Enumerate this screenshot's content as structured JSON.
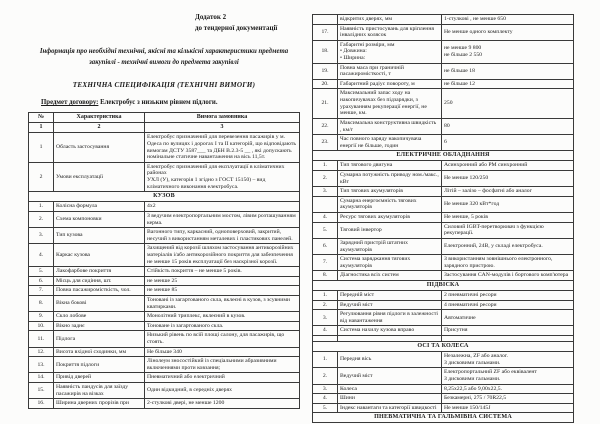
{
  "header": {
    "annex_line1": "Додаток 2",
    "annex_line2": "до тендерної документації",
    "info_paragraph": "Інформація про необхідні технічні, якісні та кількісні характеристики предмета закупівлі - технічні вимоги до предмета закупівлі",
    "spec_title": "ТЕХНІЧНА СПЕЦИФІКАЦІЯ (ТЕХНІЧНІ ВИМОГИ)",
    "subject_label": "Предмет договору:",
    "subject_value": " Електробус з низьким рівнем підлоги."
  },
  "table": {
    "columns": [
      "№",
      "Характеристика",
      "Вимога замовника"
    ],
    "column_numbers": [
      "1",
      "2",
      "3"
    ],
    "left_rows": [
      {
        "num": "1",
        "char": "Область застосування",
        "req": "Електробус призначений для перевезення пасажирів у м. Одеса по вулицях і дорогах I та II категорій, що відповідають вимогам ДСТУ 3587___ та ДБН В.2.3-5 __ , які допускають номінальне статичне навантаження на вісь 11,5т."
      },
      {
        "num": "2",
        "char": "Умови експлуатації",
        "req": "Електробус призначений для експлуатації в кліматичних районах\nУХЛ (У), категорія 1 згідно з ГОСТ 15150) – вид кліматичного виконання електробуса."
      },
      {
        "section": "КУЗОВ"
      },
      {
        "num": "1.",
        "char": "Колісна формула",
        "req": "4х2"
      },
      {
        "num": "2.",
        "char": "Схема компоновки",
        "req": "З  ведучим електропортальним мостом, лівим розташуванням керма."
      },
      {
        "num": "3.",
        "char": "Тип кузова",
        "req": "Вагонного типу, каркасний, одноповерховий, закритий, несучий з використанням металевих і пластикових панелей."
      },
      {
        "num": "4.",
        "char": "Каркас кузова",
        "req": "Захищений від корозії шляхом застосування антикорозійних матеріалів і/або антикорозійного покриття для забезпечення не менше 15 років експлуатації без наскрізної корозії."
      },
      {
        "num": "5.",
        "char": "Лакофарбове покриття",
        "req": "Стійкість покриття – не менше 5 років."
      },
      {
        "num": "6.",
        "char": "Місць для сидіння, шт.",
        "req": "не менше 25"
      },
      {
        "num": "7.",
        "char": "Повна пасажиромісткість, чол.",
        "req": "не менше 85"
      },
      {
        "num": "8.",
        "char": "Вікна бокові",
        "req": "Тоновані із загартованого скла, вклеєні в кузов, з зсувними кватирками."
      },
      {
        "num": "9.",
        "char": "Скло лобове",
        "req": "Монолітний триплекс, вклеєний в кузов."
      },
      {
        "num": "10.",
        "char": "Вікно заднє",
        "req": "Тоноване із загартованого скла."
      },
      {
        "num": "11.",
        "char": "Підлога",
        "req": "Низький рівень по всій площі салону, для пасажирів, що стоять."
      },
      {
        "num": "12.",
        "char": "Висота вхідної сходинки, мм",
        "req": "Не більше 340"
      },
      {
        "num": "13.",
        "char": "Покриття підлоги",
        "req": "Лінолеум зносостійкий із спеціальними абразивними включеннями проти ковзання;"
      },
      {
        "num": "14.",
        "char": "Привід дверей",
        "req": "Пневматичний або електричний"
      },
      {
        "num": "15.",
        "char": "Наявність пандусів для заїзду пасажирів на візках",
        "req": "Один відкидний, в середніх дверях"
      },
      {
        "num": "16.",
        "char": "Ширина дверних прорізів при",
        "req": "2-стулкові двері, не менше 1200"
      }
    ],
    "right_rows": [
      {
        "num": "",
        "char": "відкритих дверях,  мм",
        "req": "1-стулкові ,  не менше 650"
      },
      {
        "num": "17.",
        "char": "Наявність пристосувань для кріплення  інвалідних колясок",
        "req": "Не менше одного комплекту"
      },
      {
        "num": "18.",
        "char": "Габаритні розміри, мм\n•        Довжина:\n•        Ширина:",
        "req": "не менше 9 800\nне більше 2 550"
      },
      {
        "num": "19.",
        "char": "Повна маса при граничній пасажиромісткості, т",
        "req": "не більше 18"
      },
      {
        "num": "20.",
        "char": "Габаритний радіус повороту, м",
        "req": "не більше 12"
      },
      {
        "num": "21.",
        "char": "Максимальний запас ходу на накопичувачах без підзарядки, з урахуванням рекуперації енергії, не менше, км.",
        "req": "250"
      },
      {
        "num": "22.",
        "char": "Максимальна конструктивна швидкість , км/г",
        "req": "80"
      },
      {
        "num": "23.",
        "char": "Час повного заряду накопичувача енергії  не більше, годин",
        "req": "6"
      },
      {
        "section": "ЕЛЕКТРИЧНЕ ОБЛАДНАННЯ"
      },
      {
        "num": "1.",
        "char": "Тип тягового двигуна",
        "req": "Асинхронний або PM синхронний"
      },
      {
        "num": "2.",
        "char": "Сумарна потужність приводу ном./макс., кВт",
        "req": "Не менше 120/250"
      },
      {
        "num": "3.",
        "char": "Тип тягових акумуляторів",
        "req": "Літій – залізо – фосфатні або аналог"
      },
      {
        "num": "",
        "char": "Сумарна енергоємність тягових акумуляторів",
        "req": "Не менше  320 кВт*год"
      },
      {
        "num": "4.",
        "char": "Ресурс тягових акумуляторів",
        "req": "Не менше, 5 років"
      },
      {
        "num": "5.",
        "char": "Тяговий інвертор",
        "req": "Силовий IGBT-перетворювач з функцією рекуперації."
      },
      {
        "num": "6.",
        "char": "Зарядний пристрій штатних акумуляторів",
        "req": "Електронний, 24В, у складі електробуса."
      },
      {
        "num": "7.",
        "char": "Система заряджання тягових акумуляторів",
        "req": "З використанням зовнішнього електронного, зарядного пристрою."
      },
      {
        "num": "8.",
        "char": "Діагностика всіх систем",
        "req": "Застосування CAN-модулів і бортового комп'ютера"
      },
      {
        "section": "ПІДВІСКА"
      },
      {
        "num": "1.",
        "char": "Передній міст",
        "req": "2 пневматичні ресори"
      },
      {
        "num": "2.",
        "char": "Ведучий міст",
        "req": "4 пневматичні ресори"
      },
      {
        "num": "3.",
        "char": "Регулювання рівня підлоги в залежності від навантаження",
        "req": "Автоматичне"
      },
      {
        "num": "4.",
        "char": "Система нахилу кузова вправо",
        "req": "Присутня"
      },
      {
        "empty": true,
        "num": "",
        "char": "",
        "req": ""
      },
      {
        "section": "ОСІ ТА КОЛЕСА"
      },
      {
        "num": "1.",
        "char": "Передня вісь",
        "req": "Незалежна, ZF або аналог.\nЗ дисковими гальмами."
      },
      {
        "num": "2.",
        "char": "Ведучий міст",
        "req": "Електропортальний ZF або еквівалент\n З дисковими гальмами."
      },
      {
        "num": "3.",
        "char": "Колеса",
        "req": "8,25х22,5 або 9,00х22,5."
      },
      {
        "num": "4.",
        "char": "Шини",
        "req": "Безкамерні, 275 / 70R22,5"
      },
      {
        "num": "5.",
        "char": "Індекс навантаги та категорії швидкості",
        "req": "Не менше 150/145J"
      },
      {
        "section": "ПНЕВМАТИЧНА ТА ГАЛЬМІВНА СИСТЕМА"
      }
    ]
  }
}
